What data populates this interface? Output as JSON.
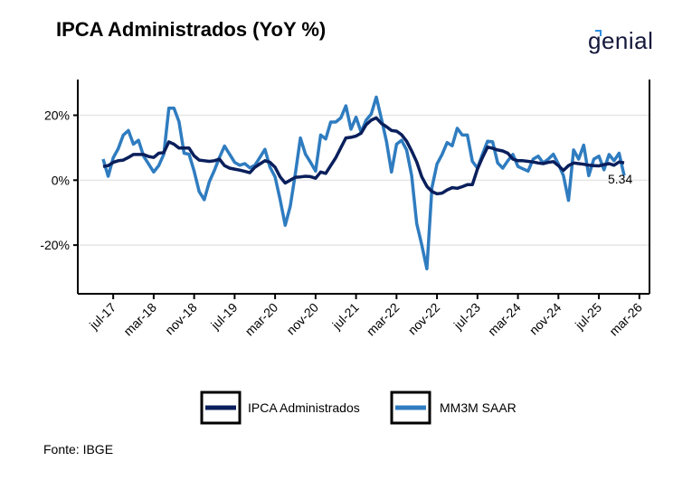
{
  "title": "IPCA Administrados (YoY %)",
  "logo": "genial",
  "source": "Fonte: IBGE",
  "colors": {
    "ipca_administrados": "#0a1f5c",
    "mm3m_saar": "#2f7cc0",
    "grid": "#e6e6e6"
  },
  "chart_data": {
    "type": "line",
    "title": "IPCA Administrados (YoY %)",
    "xlabel": "",
    "ylabel": "",
    "ylim": [
      -35,
      31
    ],
    "xlim": [
      "2016-12",
      "2026-05"
    ],
    "yticks": [
      20,
      0,
      -20
    ],
    "ytick_labels": [
      "20%",
      "0%",
      "-20%"
    ],
    "xticks": [
      "2017-07",
      "2018-03",
      "2018-11",
      "2019-07",
      "2020-03",
      "2020-11",
      "2021-07",
      "2022-03",
      "2022-11",
      "2023-07",
      "2024-03",
      "2024-11",
      "2025-07",
      "2026-03"
    ],
    "xtick_labels": [
      "jul-17",
      "mar-18",
      "nov-18",
      "jul-19",
      "mar-20",
      "nov-20",
      "jul-21",
      "mar-22",
      "nov-22",
      "jul-23",
      "mar-24",
      "nov-24",
      "jul-25",
      "mar-26"
    ],
    "grid": "horizontal",
    "legend_position": "bottom",
    "annotation": "5.34",
    "x": [
      "2017-05",
      "2017-06",
      "2017-07",
      "2017-08",
      "2017-09",
      "2017-10",
      "2017-11",
      "2017-12",
      "2018-01",
      "2018-02",
      "2018-03",
      "2018-04",
      "2018-05",
      "2018-06",
      "2018-07",
      "2018-08",
      "2018-09",
      "2018-10",
      "2018-11",
      "2018-12",
      "2019-01",
      "2019-02",
      "2019-03",
      "2019-04",
      "2019-05",
      "2019-06",
      "2019-07",
      "2019-08",
      "2019-09",
      "2019-10",
      "2019-11",
      "2019-12",
      "2020-01",
      "2020-02",
      "2020-03",
      "2020-04",
      "2020-05",
      "2020-06",
      "2020-07",
      "2020-08",
      "2020-09",
      "2020-10",
      "2020-11",
      "2020-12",
      "2021-01",
      "2021-02",
      "2021-03",
      "2021-04",
      "2021-05",
      "2021-06",
      "2021-07",
      "2021-08",
      "2021-09",
      "2021-10",
      "2021-11",
      "2021-12",
      "2022-01",
      "2022-02",
      "2022-03",
      "2022-04",
      "2022-05",
      "2022-06",
      "2022-07",
      "2022-08",
      "2022-09",
      "2022-10",
      "2022-11",
      "2022-12",
      "2023-01",
      "2023-02",
      "2023-03",
      "2023-04",
      "2023-05",
      "2023-06",
      "2023-07",
      "2023-08",
      "2023-09",
      "2023-10",
      "2023-11",
      "2023-12",
      "2024-01",
      "2024-02",
      "2024-03",
      "2024-04",
      "2024-05",
      "2024-06",
      "2024-07",
      "2024-08",
      "2024-09",
      "2024-10",
      "2024-11",
      "2024-12",
      "2025-01",
      "2025-02",
      "2025-03",
      "2025-04",
      "2025-05",
      "2025-06",
      "2025-07",
      "2025-08",
      "2025-09",
      "2025-10",
      "2025-11",
      "2025-12"
    ],
    "series": [
      {
        "name": "IPCA Administrados",
        "color": "#0a1f5c",
        "values": [
          4.2,
          4.5,
          5.5,
          6.0,
          6.2,
          7.0,
          7.9,
          7.9,
          7.9,
          7.3,
          7.0,
          8.3,
          8.5,
          11.8,
          11.1,
          9.9,
          9.9,
          9.9,
          7.5,
          6.2,
          6.0,
          5.8,
          6.0,
          6.5,
          4.5,
          3.7,
          3.4,
          3.1,
          2.7,
          2.3,
          4.0,
          5.0,
          6.0,
          5.5,
          4.0,
          1.0,
          -0.9,
          0.0,
          0.9,
          1.0,
          1.2,
          1.1,
          0.6,
          2.5,
          2.1,
          4.5,
          6.9,
          10.0,
          13.0,
          13.2,
          13.6,
          14.5,
          17.1,
          18.5,
          19.2,
          17.5,
          16.5,
          15.3,
          15.1,
          14.0,
          12.0,
          9.0,
          5.6,
          1.0,
          -1.9,
          -3.5,
          -4.2,
          -4.0,
          -3.0,
          -2.3,
          -2.5,
          -2.0,
          -1.4,
          -1.4,
          3.4,
          7.0,
          10.2,
          9.8,
          9.3,
          9.0,
          8.3,
          6.5,
          6.0,
          6.0,
          5.8,
          5.6,
          5.3,
          5.1,
          5.5,
          5.7,
          4.5,
          3.0,
          4.5,
          5.3,
          5.1,
          4.9,
          4.6,
          4.5,
          4.4,
          4.8,
          5.1,
          4.6,
          5.6,
          5.34
        ]
      },
      {
        "name": "MM3M SAAR",
        "color": "#2f7cc0",
        "values": [
          6.5,
          1.2,
          6.9,
          9.7,
          13.9,
          15.3,
          11.1,
          12.3,
          7.4,
          5.0,
          2.5,
          4.5,
          8.0,
          22.2,
          22.2,
          18.0,
          8.3,
          8.0,
          2.8,
          -3.5,
          -6.0,
          -0.5,
          3.0,
          7.0,
          10.5,
          8.0,
          5.5,
          4.6,
          5.1,
          3.8,
          4.6,
          7.0,
          9.5,
          4.0,
          1.0,
          -6.0,
          -13.9,
          -8.0,
          2.0,
          13.0,
          8.0,
          5.5,
          2.8,
          13.9,
          12.7,
          17.9,
          17.9,
          19.2,
          22.9,
          15.7,
          19.4,
          14.8,
          18.5,
          20.4,
          25.6,
          19.0,
          12.0,
          2.5,
          11.1,
          12.3,
          9.3,
          1.4,
          -13.4,
          -20.0,
          -27.3,
          -2.3,
          5.0,
          7.9,
          11.6,
          10.6,
          16.0,
          13.9,
          13.9,
          5.8,
          3.7,
          8.0,
          12.0,
          11.8,
          5.3,
          3.7,
          6.0,
          7.9,
          4.2,
          3.5,
          2.8,
          6.5,
          7.4,
          5.3,
          6.5,
          8.0,
          5.0,
          1.4,
          -6.2,
          9.3,
          6.5,
          10.8,
          1.4,
          6.5,
          7.4,
          3.2,
          7.9,
          6.0,
          8.3,
          1.4
        ]
      }
    ]
  }
}
